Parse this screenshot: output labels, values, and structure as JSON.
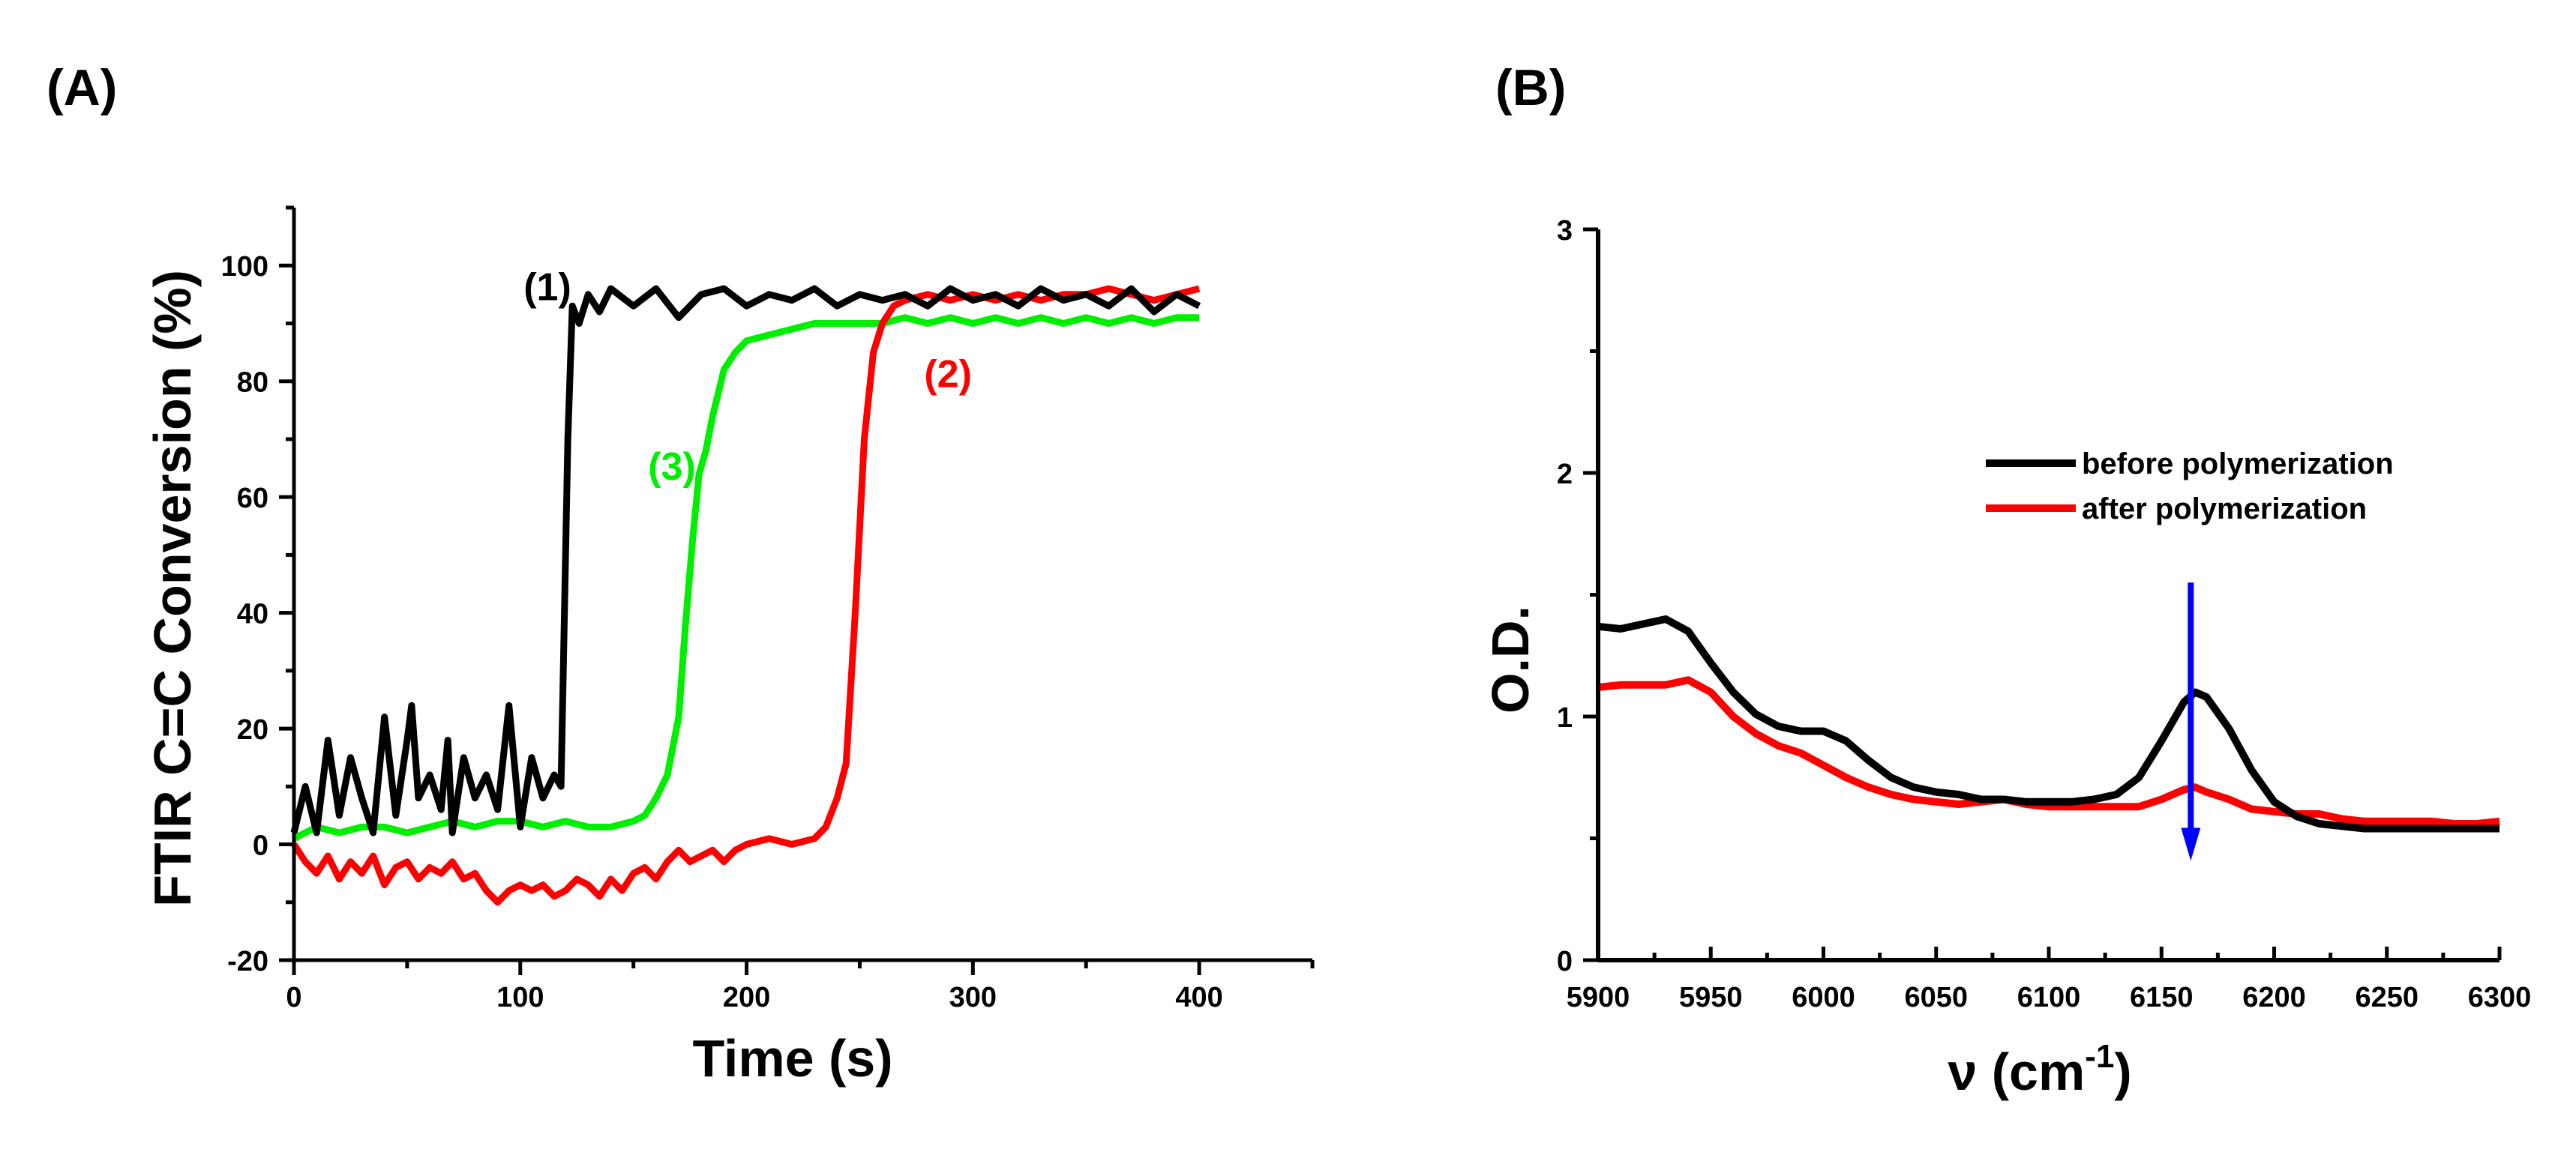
{
  "figure": {
    "panels": [
      {
        "id": "A",
        "label": "(A)"
      },
      {
        "id": "B",
        "label": "(B)"
      }
    ]
  },
  "chart_data": [
    {
      "panel": "(A)",
      "type": "line",
      "title": "",
      "xlabel": "Time (s)",
      "ylabel": "FTIR C=C Conversion (%)",
      "xlim": [
        0,
        450
      ],
      "ylim": [
        -20,
        110
      ],
      "xticks": [
        0,
        100,
        200,
        300,
        400
      ],
      "xtick_labels": [
        "0",
        "100",
        "200",
        "300",
        "400"
      ],
      "yticks": [
        -20,
        0,
        20,
        40,
        60,
        80,
        100
      ],
      "ytick_labels": [
        "-20",
        "0",
        "20",
        "40",
        "60",
        "80",
        "100"
      ],
      "grid": false,
      "series": [
        {
          "name": "(1)",
          "color": "#000000",
          "label_x": 112,
          "label_y": 94,
          "points": [
            [
              0,
              2
            ],
            [
              5,
              10
            ],
            [
              10,
              2
            ],
            [
              15,
              18
            ],
            [
              20,
              5
            ],
            [
              25,
              15
            ],
            [
              30,
              8
            ],
            [
              35,
              2
            ],
            [
              40,
              22
            ],
            [
              45,
              5
            ],
            [
              50,
              18
            ],
            [
              52,
              24
            ],
            [
              55,
              8
            ],
            [
              60,
              12
            ],
            [
              65,
              6
            ],
            [
              68,
              18
            ],
            [
              70,
              2
            ],
            [
              75,
              15
            ],
            [
              80,
              8
            ],
            [
              85,
              12
            ],
            [
              90,
              6
            ],
            [
              95,
              24
            ],
            [
              100,
              3
            ],
            [
              105,
              15
            ],
            [
              110,
              8
            ],
            [
              115,
              12
            ],
            [
              118,
              10
            ],
            [
              121,
              70
            ],
            [
              123,
              93
            ],
            [
              126,
              90
            ],
            [
              130,
              95
            ],
            [
              135,
              92
            ],
            [
              140,
              96
            ],
            [
              150,
              93
            ],
            [
              160,
              96
            ],
            [
              170,
              91
            ],
            [
              180,
              95
            ],
            [
              190,
              96
            ],
            [
              200,
              93
            ],
            [
              210,
              95
            ],
            [
              220,
              94
            ],
            [
              230,
              96
            ],
            [
              240,
              93
            ],
            [
              250,
              95
            ],
            [
              260,
              94
            ],
            [
              270,
              95
            ],
            [
              280,
              93
            ],
            [
              290,
              96
            ],
            [
              300,
              94
            ],
            [
              310,
              95
            ],
            [
              320,
              93
            ],
            [
              330,
              96
            ],
            [
              340,
              94
            ],
            [
              350,
              95
            ],
            [
              360,
              93
            ],
            [
              370,
              96
            ],
            [
              380,
              92
            ],
            [
              390,
              95
            ],
            [
              400,
              93
            ]
          ]
        },
        {
          "name": "(2)",
          "color": "#ff0000",
          "label_x": 289,
          "label_y": 79,
          "points": [
            [
              0,
              0
            ],
            [
              5,
              -3
            ],
            [
              10,
              -5
            ],
            [
              15,
              -2
            ],
            [
              20,
              -6
            ],
            [
              25,
              -3
            ],
            [
              30,
              -5
            ],
            [
              35,
              -2
            ],
            [
              40,
              -7
            ],
            [
              45,
              -4
            ],
            [
              50,
              -3
            ],
            [
              55,
              -6
            ],
            [
              60,
              -4
            ],
            [
              65,
              -5
            ],
            [
              70,
              -3
            ],
            [
              75,
              -6
            ],
            [
              80,
              -5
            ],
            [
              85,
              -8
            ],
            [
              90,
              -10
            ],
            [
              95,
              -8
            ],
            [
              100,
              -7
            ],
            [
              105,
              -8
            ],
            [
              110,
              -7
            ],
            [
              115,
              -9
            ],
            [
              120,
              -8
            ],
            [
              125,
              -6
            ],
            [
              130,
              -7
            ],
            [
              135,
              -9
            ],
            [
              140,
              -6
            ],
            [
              145,
              -8
            ],
            [
              150,
              -5
            ],
            [
              155,
              -4
            ],
            [
              160,
              -6
            ],
            [
              165,
              -3
            ],
            [
              170,
              -1
            ],
            [
              175,
              -3
            ],
            [
              180,
              -2
            ],
            [
              185,
              -1
            ],
            [
              190,
              -3
            ],
            [
              195,
              -1
            ],
            [
              200,
              0
            ],
            [
              210,
              1
            ],
            [
              220,
              0
            ],
            [
              230,
              1
            ],
            [
              235,
              3
            ],
            [
              240,
              8
            ],
            [
              244,
              14
            ],
            [
              248,
              40
            ],
            [
              252,
              70
            ],
            [
              256,
              85
            ],
            [
              260,
              90
            ],
            [
              265,
              93
            ],
            [
              270,
              94
            ],
            [
              280,
              95
            ],
            [
              290,
              94
            ],
            [
              300,
              95
            ],
            [
              310,
              94
            ],
            [
              320,
              95
            ],
            [
              330,
              94
            ],
            [
              340,
              95
            ],
            [
              350,
              95
            ],
            [
              360,
              96
            ],
            [
              370,
              95
            ],
            [
              380,
              94
            ],
            [
              390,
              95
            ],
            [
              400,
              96
            ]
          ]
        },
        {
          "name": "(3)",
          "color": "#00ee00",
          "label_x": 167,
          "label_y": 63,
          "points": [
            [
              0,
              1
            ],
            [
              10,
              3
            ],
            [
              20,
              2
            ],
            [
              30,
              3
            ],
            [
              40,
              3
            ],
            [
              50,
              2
            ],
            [
              60,
              3
            ],
            [
              70,
              4
            ],
            [
              80,
              3
            ],
            [
              90,
              4
            ],
            [
              100,
              4
            ],
            [
              110,
              3
            ],
            [
              120,
              4
            ],
            [
              130,
              3
            ],
            [
              140,
              3
            ],
            [
              150,
              4
            ],
            [
              155,
              5
            ],
            [
              160,
              8
            ],
            [
              165,
              12
            ],
            [
              170,
              22
            ],
            [
              173,
              38
            ],
            [
              176,
              52
            ],
            [
              179,
              64
            ],
            [
              182,
              68
            ],
            [
              185,
              74
            ],
            [
              190,
              82
            ],
            [
              195,
              85
            ],
            [
              200,
              87
            ],
            [
              210,
              88
            ],
            [
              220,
              89
            ],
            [
              230,
              90
            ],
            [
              240,
              90
            ],
            [
              250,
              90
            ],
            [
              260,
              90
            ],
            [
              270,
              91
            ],
            [
              280,
              90
            ],
            [
              290,
              91
            ],
            [
              300,
              90
            ],
            [
              310,
              91
            ],
            [
              320,
              90
            ],
            [
              330,
              91
            ],
            [
              340,
              90
            ],
            [
              350,
              91
            ],
            [
              360,
              90
            ],
            [
              370,
              91
            ],
            [
              380,
              90
            ],
            [
              390,
              91
            ],
            [
              400,
              91
            ]
          ]
        }
      ]
    },
    {
      "panel": "(B)",
      "type": "line",
      "title": "",
      "xlabel": "ν (cm",
      "xlabel_superscript": "-1",
      "xlabel_suffix": ")",
      "ylabel": "O.D.",
      "xlim": [
        5900,
        6300
      ],
      "ylim": [
        0,
        3
      ],
      "xticks": [
        5900,
        5950,
        6000,
        6050,
        6100,
        6150,
        6200,
        6250,
        6300
      ],
      "xtick_labels": [
        "5900",
        "5950",
        "6000",
        "6050",
        "6100",
        "6150",
        "6200",
        "6250",
        "6300"
      ],
      "yticks": [
        0,
        1,
        2,
        3
      ],
      "ytick_labels": [
        "0",
        "1",
        "2",
        "3"
      ],
      "grid": false,
      "legend_position": "upper-right",
      "annotation": {
        "type": "arrow",
        "color": "#0000ff",
        "x": 6163,
        "y_from": 1.55,
        "y_to": 0.42
      },
      "series": [
        {
          "name": "before polymerization",
          "color": "#000000",
          "points": [
            [
              5900,
              1.37
            ],
            [
              5910,
              1.36
            ],
            [
              5920,
              1.38
            ],
            [
              5930,
              1.4
            ],
            [
              5940,
              1.35
            ],
            [
              5950,
              1.22
            ],
            [
              5960,
              1.1
            ],
            [
              5970,
              1.01
            ],
            [
              5980,
              0.96
            ],
            [
              5990,
              0.94
            ],
            [
              6000,
              0.94
            ],
            [
              6010,
              0.9
            ],
            [
              6020,
              0.82
            ],
            [
              6030,
              0.75
            ],
            [
              6040,
              0.71
            ],
            [
              6050,
              0.69
            ],
            [
              6060,
              0.68
            ],
            [
              6070,
              0.66
            ],
            [
              6080,
              0.66
            ],
            [
              6090,
              0.65
            ],
            [
              6100,
              0.65
            ],
            [
              6110,
              0.65
            ],
            [
              6120,
              0.66
            ],
            [
              6130,
              0.68
            ],
            [
              6140,
              0.75
            ],
            [
              6150,
              0.9
            ],
            [
              6160,
              1.06
            ],
            [
              6165,
              1.1
            ],
            [
              6170,
              1.08
            ],
            [
              6180,
              0.95
            ],
            [
              6190,
              0.78
            ],
            [
              6200,
              0.65
            ],
            [
              6210,
              0.59
            ],
            [
              6220,
              0.56
            ],
            [
              6230,
              0.55
            ],
            [
              6240,
              0.54
            ],
            [
              6250,
              0.54
            ],
            [
              6260,
              0.54
            ],
            [
              6270,
              0.54
            ],
            [
              6280,
              0.54
            ],
            [
              6290,
              0.54
            ],
            [
              6300,
              0.54
            ]
          ]
        },
        {
          "name": "after polymerization",
          "color": "#ff0000",
          "points": [
            [
              5900,
              1.12
            ],
            [
              5910,
              1.13
            ],
            [
              5920,
              1.13
            ],
            [
              5930,
              1.13
            ],
            [
              5940,
              1.15
            ],
            [
              5950,
              1.1
            ],
            [
              5960,
              1.0
            ],
            [
              5970,
              0.93
            ],
            [
              5980,
              0.88
            ],
            [
              5990,
              0.85
            ],
            [
              6000,
              0.8
            ],
            [
              6010,
              0.75
            ],
            [
              6020,
              0.71
            ],
            [
              6030,
              0.68
            ],
            [
              6040,
              0.66
            ],
            [
              6050,
              0.65
            ],
            [
              6060,
              0.64
            ],
            [
              6070,
              0.65
            ],
            [
              6080,
              0.66
            ],
            [
              6090,
              0.64
            ],
            [
              6100,
              0.63
            ],
            [
              6110,
              0.63
            ],
            [
              6120,
              0.63
            ],
            [
              6130,
              0.63
            ],
            [
              6140,
              0.63
            ],
            [
              6150,
              0.66
            ],
            [
              6160,
              0.7
            ],
            [
              6165,
              0.71
            ],
            [
              6170,
              0.69
            ],
            [
              6180,
              0.66
            ],
            [
              6190,
              0.62
            ],
            [
              6200,
              0.61
            ],
            [
              6210,
              0.6
            ],
            [
              6220,
              0.6
            ],
            [
              6230,
              0.58
            ],
            [
              6240,
              0.57
            ],
            [
              6250,
              0.57
            ],
            [
              6260,
              0.57
            ],
            [
              6270,
              0.57
            ],
            [
              6280,
              0.56
            ],
            [
              6290,
              0.56
            ],
            [
              6300,
              0.57
            ]
          ]
        }
      ]
    }
  ]
}
